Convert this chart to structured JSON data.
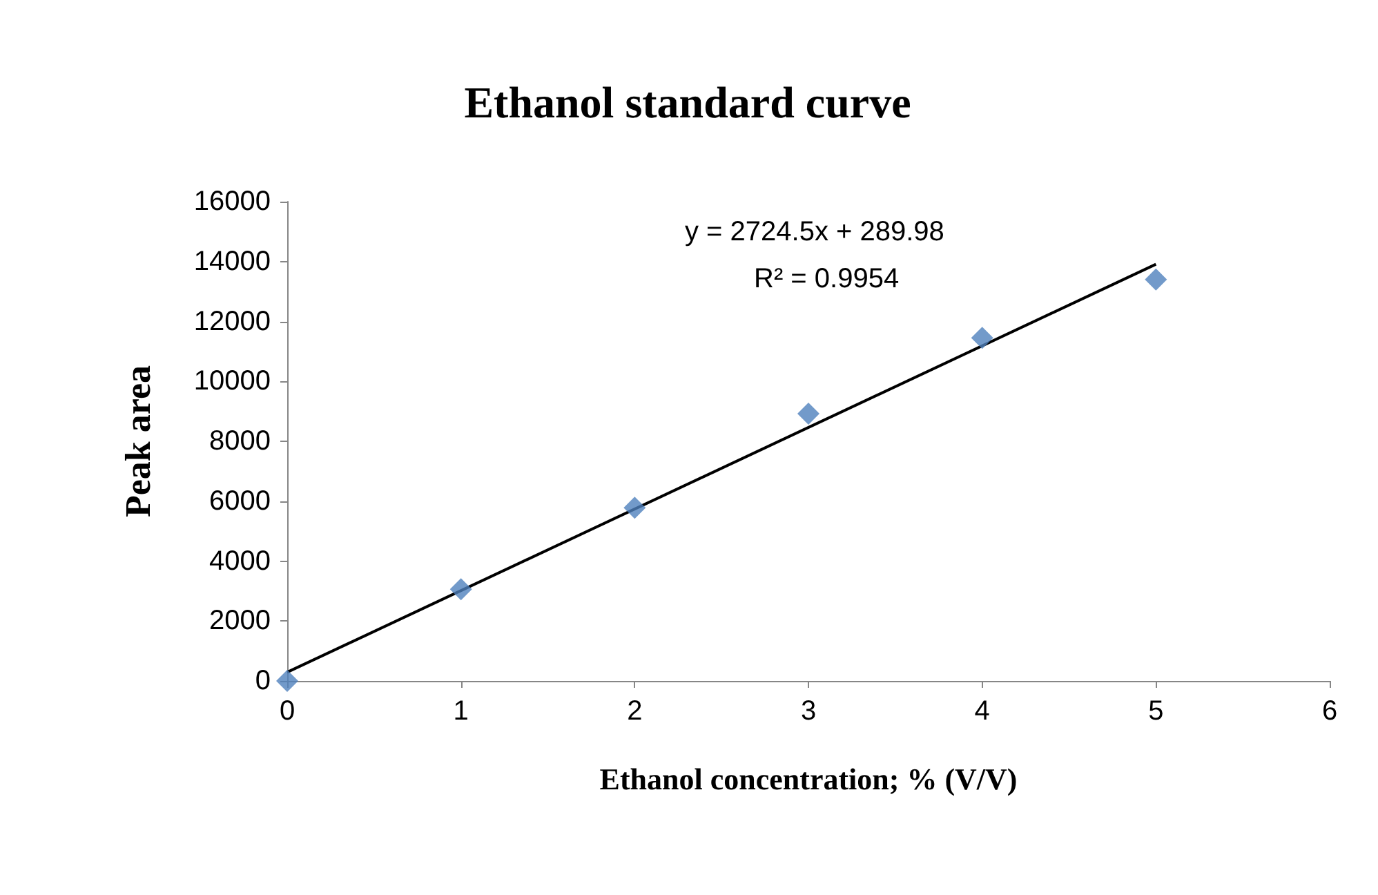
{
  "chart_data": {
    "type": "scatter",
    "title": "Ethanol standard curve",
    "xlabel": "Ethanol concentration; % (V/V)",
    "ylabel": "Peak area",
    "xlim": [
      0,
      6
    ],
    "xticks": [
      0,
      1,
      2,
      3,
      4,
      5,
      6
    ],
    "ylim": [
      0,
      16000
    ],
    "yticks": [
      0,
      2000,
      4000,
      6000,
      8000,
      10000,
      12000,
      14000,
      16000
    ],
    "grid": false,
    "marker": "diamond",
    "series": [
      {
        "color": "#4f81bd",
        "x": [
          0,
          1,
          2,
          3,
          4,
          5
        ],
        "values": [
          0,
          3060,
          5780,
          8920,
          11450,
          13400
        ]
      },
      {
        "type": "line",
        "color": "#000000",
        "line_style": "solid",
        "marker": "none",
        "x": [
          0,
          5
        ],
        "values": [
          290,
          13910
        ]
      }
    ],
    "annotations": [
      "y = 2724.5x + 289.98",
      "R² = 0.9954"
    ]
  }
}
